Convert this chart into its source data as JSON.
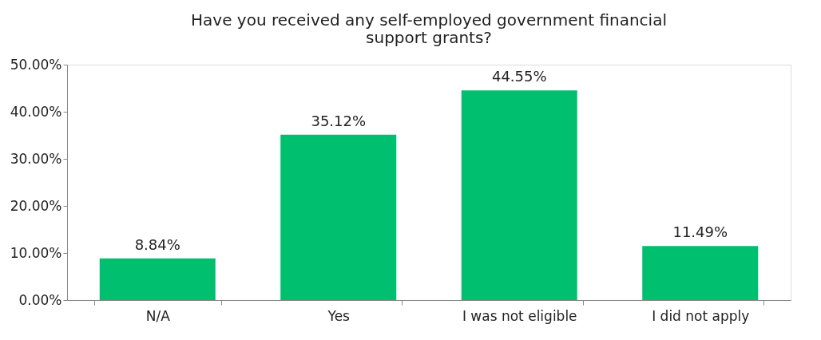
{
  "chart_data": {
    "type": "bar",
    "title": "Have you received any self-employed government financial support grants?",
    "categories": [
      "N/A",
      "Yes",
      "I was not eligible",
      "I did not apply"
    ],
    "values": [
      8.84,
      35.12,
      44.55,
      11.49
    ],
    "value_labels": [
      "8.84%",
      "35.12%",
      "44.55%",
      "11.49%"
    ],
    "color": "#00bf6f",
    "ylim": [
      0,
      50
    ],
    "yticks": [
      {
        "value": 0,
        "label": "0.00%"
      },
      {
        "value": 10,
        "label": "10.00%"
      },
      {
        "value": 20,
        "label": "20.00%"
      },
      {
        "value": 30,
        "label": "30.00%"
      },
      {
        "value": 40,
        "label": "40.00%"
      },
      {
        "value": 50,
        "label": "50.00%"
      }
    ],
    "grid": false
  }
}
